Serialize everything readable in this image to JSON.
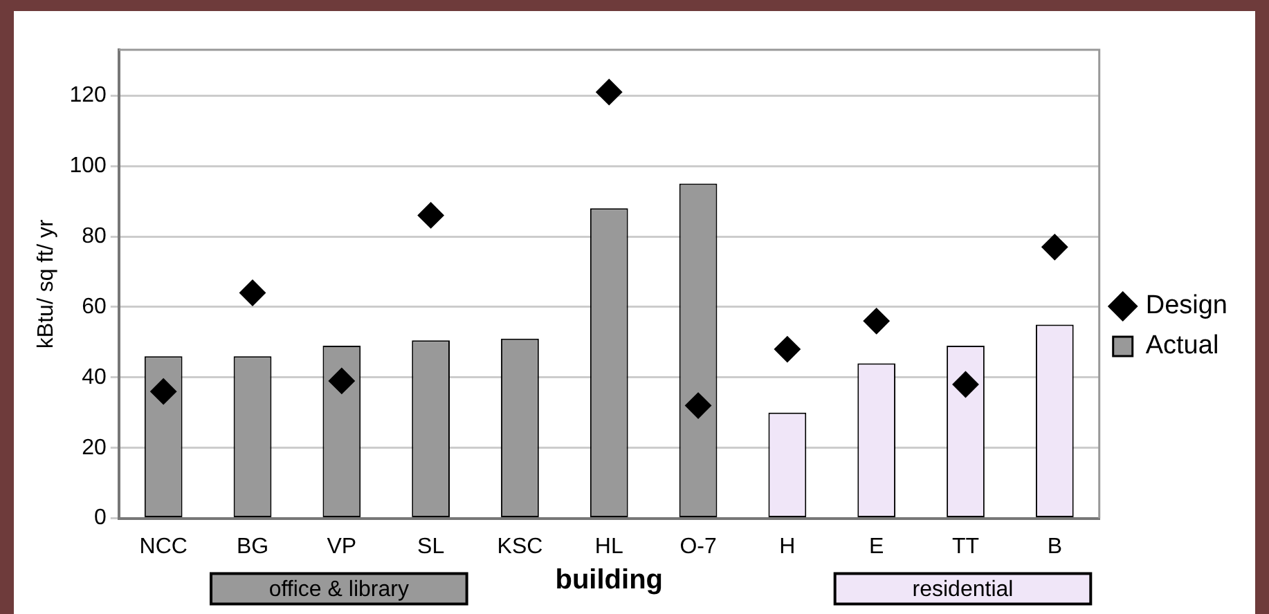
{
  "chart_data": {
    "type": "bar",
    "categories": [
      "NCC",
      "BG",
      "VP",
      "SL",
      "KSC",
      "HL",
      "O-7",
      "H",
      "E",
      "TT",
      "B"
    ],
    "xlabel": "building",
    "ylabel": "kBtu/ sq ft/ yr",
    "series": [
      {
        "name": "Design",
        "type": "scatter",
        "color": "#000000",
        "values": [
          36,
          64,
          39,
          86,
          null,
          121,
          32,
          48,
          56,
          38,
          77
        ]
      },
      {
        "name": "Actual",
        "color": "#999999",
        "colors": [
          "#999999",
          "#999999",
          "#999999",
          "#999999",
          "#999999",
          "#999999",
          "#999999",
          "#f0e6f8",
          "#f0e6f8",
          "#f0e6f8",
          "#f0e6f8"
        ],
        "values": [
          46,
          46,
          49,
          50.5,
          51,
          88,
          95,
          30,
          44,
          49,
          55
        ]
      }
    ],
    "ylim": [
      0,
      133
    ],
    "yticks": [
      0,
      20,
      40,
      60,
      80,
      100,
      120
    ],
    "grid": "y",
    "legend": "right",
    "marker": "diamond",
    "annotations": [
      "office & library",
      "residential"
    ]
  }
}
